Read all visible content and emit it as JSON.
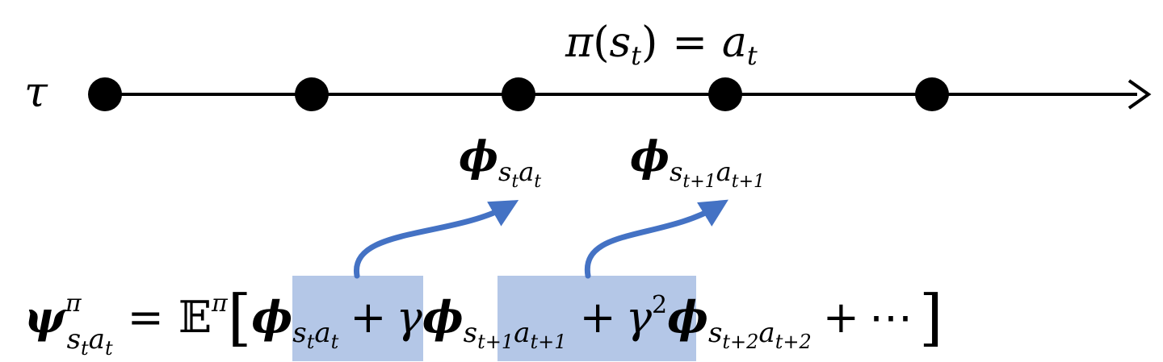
{
  "trajectory": {
    "symbol": "τ",
    "node_count": 5,
    "policy_label": {
      "pi": "π",
      "lparen": "(",
      "s": "s",
      "t": "t",
      "rparen": ")",
      "eq": "=",
      "a": "a",
      "t2": "t"
    }
  },
  "features": {
    "phi": "ϕ",
    "first": {
      "s": "s",
      "t": "t",
      "a": "a",
      "t2": "t"
    },
    "second": {
      "s": "s",
      "t": "t+1",
      "a": "a",
      "t2": "t+1"
    }
  },
  "equation": {
    "psi": "ψ",
    "psi_sup": "π",
    "psi_sub_s": "s",
    "psi_sub_t": "t",
    "psi_sub_a": "a",
    "psi_sub_t2": "t",
    "eq": "=",
    "expect": "𝔼",
    "expect_sup": "π",
    "lbracket": "[",
    "phi": "ϕ",
    "term1": {
      "s": "s",
      "t": "t",
      "a": "a",
      "t2": "t"
    },
    "plus1": "+",
    "gamma1": "γ",
    "term2": {
      "s": "s",
      "t": "t+1",
      "a": "a",
      "t2": "t+1"
    },
    "plus2": "+",
    "gamma2": "γ",
    "gamma2_sup": "2",
    "term3": {
      "s": "s",
      "t": "t+2",
      "a": "a",
      "t2": "t+2"
    },
    "plus3": "+",
    "dots": "⋯",
    "rbracket": "]"
  },
  "colors": {
    "highlight": "#b4c7e7",
    "arrow": "#4472c4",
    "line": "#000000"
  }
}
